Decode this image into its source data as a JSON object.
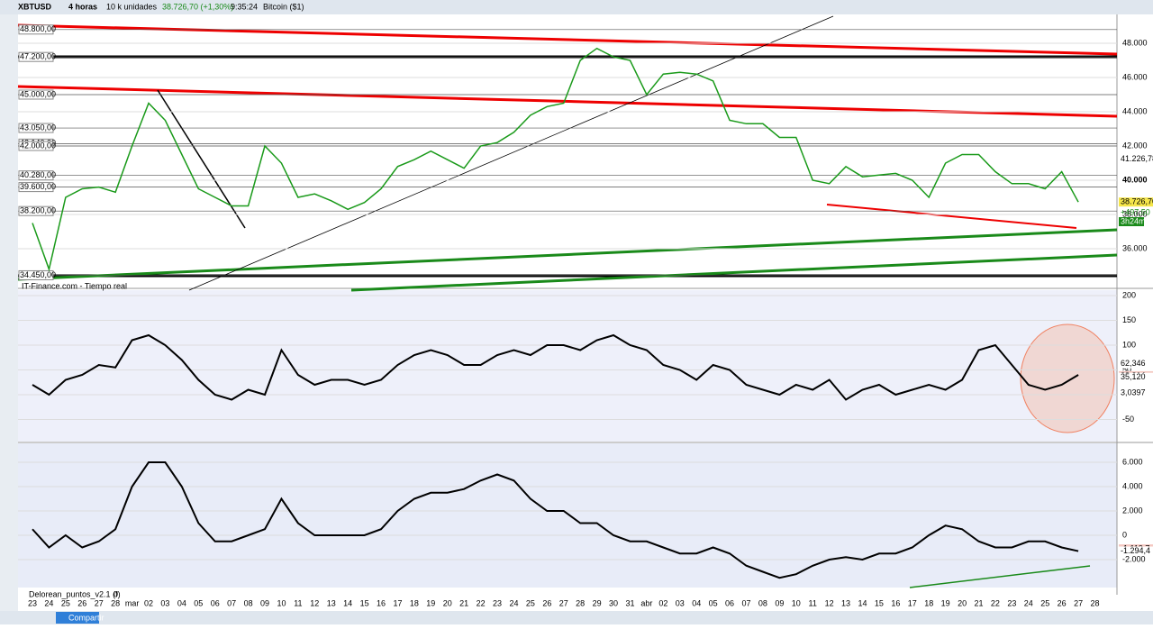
{
  "toolbar": {
    "symbol": "XBTUSD",
    "interval": "4 horas",
    "units": "10 k unidades",
    "quote": "38.726,70 (+1,30%)",
    "time": "9:35:24",
    "name": "Bitcoin ($1)"
  },
  "main_pane": {
    "left_labels": [
      {
        "value": 48800,
        "label": "48.800,00"
      },
      {
        "value": 47200,
        "label": "47.200,00"
      },
      {
        "value": 45000,
        "label": "45.000,00"
      },
      {
        "value": 43050,
        "label": "43.050,00"
      },
      {
        "value": 42140,
        "label": "42.140,00"
      },
      {
        "value": 42000,
        "label": "42.000,00"
      },
      {
        "value": 40280,
        "label": "40.280,00"
      },
      {
        "value": 39600,
        "label": "39.600,00"
      },
      {
        "value": 38200,
        "label": "38.200,00"
      },
      {
        "value": 34450,
        "label": "34.450,00"
      }
    ],
    "yticks": [
      {
        "value": 48000,
        "label": "48.000"
      },
      {
        "value": 46000,
        "label": "46.000"
      },
      {
        "value": 44000,
        "label": "44.000"
      },
      {
        "value": 42000,
        "label": "42.000"
      },
      {
        "value": 40000,
        "label": "40.000"
      },
      {
        "value": 38000,
        "label": "38.000"
      },
      {
        "value": 36000,
        "label": "36.000"
      }
    ],
    "tags": [
      {
        "value": 41226.78,
        "label": "41.226,78"
      },
      {
        "value": 38726.7,
        "label": "38.726,70"
      }
    ],
    "change": "+497,50",
    "countdown": "3h24m",
    "price": [
      37500,
      34800,
      39000,
      39500,
      39600,
      39300,
      42000,
      44500,
      43500,
      41500,
      39500,
      39000,
      38500,
      38500,
      42000,
      41000,
      39000,
      39200,
      38800,
      38300,
      38700,
      39500,
      40800,
      41200,
      41700,
      41200,
      40700,
      42000,
      42200,
      42800,
      43800,
      44300,
      44500,
      47000,
      47700,
      47200,
      47000,
      45000,
      46200,
      46300,
      46200,
      45800,
      43500,
      43300,
      43300,
      42500,
      42500,
      40000,
      39800,
      40800,
      40200,
      40300,
      40400,
      40000,
      39000,
      41000,
      41500,
      41500,
      40500,
      39800,
      39800,
      39500,
      40500,
      38726.7,
      null
    ]
  },
  "pane1": {
    "label": "IT-Finance.com - Tiempo real",
    "yticks": [
      200,
      150,
      100,
      50,
      0,
      -50
    ],
    "tags": [
      {
        "value": 62.346,
        "label": "62,346"
      },
      {
        "value": 38.314,
        "label": "38,314"
      },
      {
        "value": 35.12,
        "label": "35,120"
      },
      {
        "value": 3.0397,
        "label": "3,0397"
      }
    ],
    "values": [
      20,
      0,
      30,
      40,
      60,
      55,
      110,
      120,
      100,
      70,
      30,
      0,
      -10,
      10,
      0,
      90,
      40,
      20,
      30,
      30,
      20,
      30,
      60,
      80,
      90,
      80,
      60,
      60,
      80,
      90,
      80,
      100,
      100,
      90,
      110,
      120,
      100,
      90,
      60,
      50,
      30,
      60,
      50,
      20,
      10,
      0,
      20,
      10,
      30,
      -10,
      10,
      20,
      0,
      10,
      20,
      10,
      30,
      90,
      100,
      60,
      20,
      10,
      20,
      40,
      null
    ]
  },
  "pane2": {
    "label": "Delorean_puntos_v2.1 (f)",
    "param": "0",
    "yticks": [
      {
        "value": 6000,
        "label": "6.000"
      },
      {
        "value": 4000,
        "label": "4.000"
      },
      {
        "value": 2000,
        "label": "2.000"
      },
      {
        "value": 0,
        "label": "0"
      },
      {
        "value": -2000,
        "label": "-2.000"
      }
    ],
    "tags": [
      {
        "value": -1119.7,
        "label": "-1.119,7"
      },
      {
        "value": -1294.4,
        "label": "-1.294,4"
      }
    ],
    "values": [
      500,
      -1000,
      0,
      -1000,
      -500,
      500,
      4000,
      6000,
      6000,
      4000,
      1000,
      -500,
      -500,
      0,
      500,
      3000,
      1000,
      0,
      0,
      0,
      0,
      500,
      2000,
      3000,
      3500,
      3500,
      3800,
      4500,
      5000,
      4500,
      3000,
      2000,
      2000,
      1000,
      1000,
      0,
      -500,
      -500,
      -1000,
      -1500,
      -1500,
      -1000,
      -1500,
      -2500,
      -3000,
      -3500,
      -3200,
      -2500,
      -2000,
      -1800,
      -2000,
      -1500,
      -1500,
      -1000,
      0,
      800,
      500,
      -500,
      -1000,
      -1000,
      -500,
      -500,
      -1000,
      -1300,
      null
    ]
  },
  "dates": [
    "23",
    "24",
    "25",
    "26",
    "27",
    "28",
    "mar",
    "02",
    "03",
    "04",
    "05",
    "06",
    "07",
    "08",
    "09",
    "10",
    "11",
    "12",
    "13",
    "14",
    "15",
    "16",
    "17",
    "18",
    "19",
    "20",
    "21",
    "22",
    "23",
    "24",
    "25",
    "26",
    "27",
    "28",
    "29",
    "30",
    "31",
    "abr",
    "02",
    "03",
    "04",
    "05",
    "06",
    "07",
    "08",
    "09",
    "10",
    "11",
    "12",
    "13",
    "14",
    "15",
    "16",
    "17",
    "18",
    "19",
    "20",
    "21",
    "22",
    "23",
    "24",
    "25",
    "26",
    "27",
    "28"
  ],
  "bottom": {
    "share": "Compartir"
  }
}
